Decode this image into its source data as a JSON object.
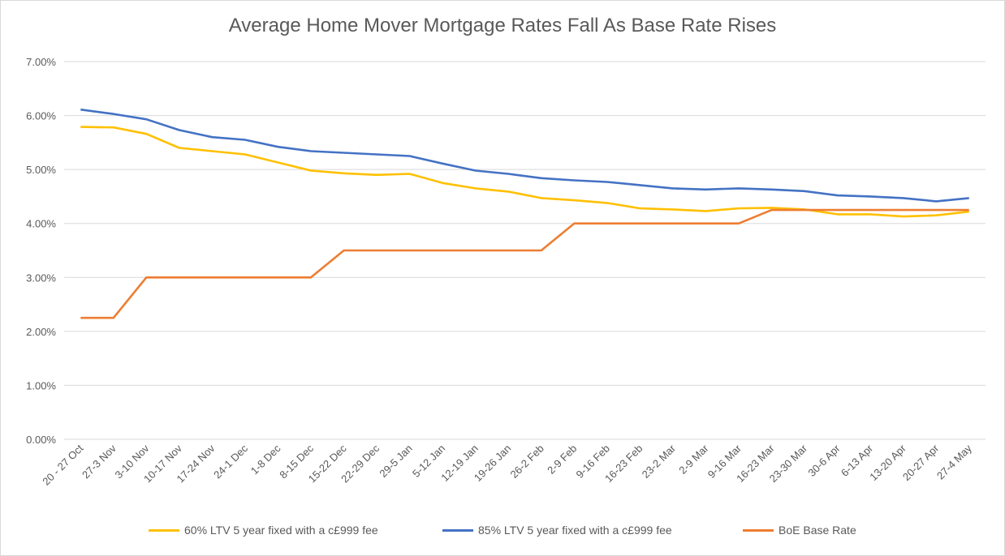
{
  "chart_data": {
    "type": "line",
    "title": "Average Home Mover Mortgage Rates Fall As Base Rate Rises",
    "xlabel": "",
    "ylabel": "",
    "ylim": [
      0,
      7
    ],
    "y_ticks": [
      "0.00%",
      "1.00%",
      "2.00%",
      "3.00%",
      "4.00%",
      "5.00%",
      "6.00%",
      "7.00%"
    ],
    "grid": true,
    "legend_position": "bottom",
    "categories": [
      "20 - 27 Oct",
      "27-3 Nov",
      "3-10 Nov",
      "10-17 Nov",
      "17-24 Nov",
      "24-1 Dec",
      "1-8 Dec",
      "8-15 Dec",
      "15-22 Dec",
      "22-29 Dec",
      "29-5 Jan",
      "5-12 Jan",
      "12-19 Jan",
      "19-26 Jan",
      "26-2 Feb",
      "2-9 Feb",
      "9-16 Feb",
      "16-23 Feb",
      "23-2 Mar",
      "2-9 Mar",
      "9-16 Mar",
      "16-23 Mar",
      "23-30 Mar",
      "30-6 Apr",
      "6-13 Apr",
      "13-20 Apr",
      "20-27 Apr",
      "27-4 May"
    ],
    "series": [
      {
        "name": "60% LTV 5 year fixed with a c£999 fee",
        "color": "#FFC000",
        "values": [
          5.79,
          5.78,
          5.66,
          5.4,
          5.34,
          5.28,
          5.13,
          4.98,
          4.93,
          4.9,
          4.92,
          4.75,
          4.65,
          4.59,
          4.47,
          4.43,
          4.38,
          4.28,
          4.26,
          4.23,
          4.28,
          4.29,
          4.26,
          4.17,
          4.17,
          4.13,
          4.15,
          4.22
        ]
      },
      {
        "name": "85%  LTV 5 year fixed with a c£999 fee",
        "color": "#4472C4",
        "values": [
          6.11,
          6.03,
          5.93,
          5.73,
          5.6,
          5.55,
          5.42,
          5.34,
          5.31,
          5.28,
          5.25,
          5.11,
          4.98,
          4.92,
          4.84,
          4.8,
          4.77,
          4.71,
          4.65,
          4.63,
          4.65,
          4.63,
          4.6,
          4.52,
          4.5,
          4.47,
          4.41,
          4.47
        ]
      },
      {
        "name": "BoE Base Rate",
        "color": "#ED7D31",
        "values": [
          2.25,
          2.25,
          3.0,
          3.0,
          3.0,
          3.0,
          3.0,
          3.0,
          3.5,
          3.5,
          3.5,
          3.5,
          3.5,
          3.5,
          3.5,
          4.0,
          4.0,
          4.0,
          4.0,
          4.0,
          4.0,
          4.25,
          4.25,
          4.25,
          4.25,
          4.25,
          4.25,
          4.25
        ]
      }
    ]
  }
}
